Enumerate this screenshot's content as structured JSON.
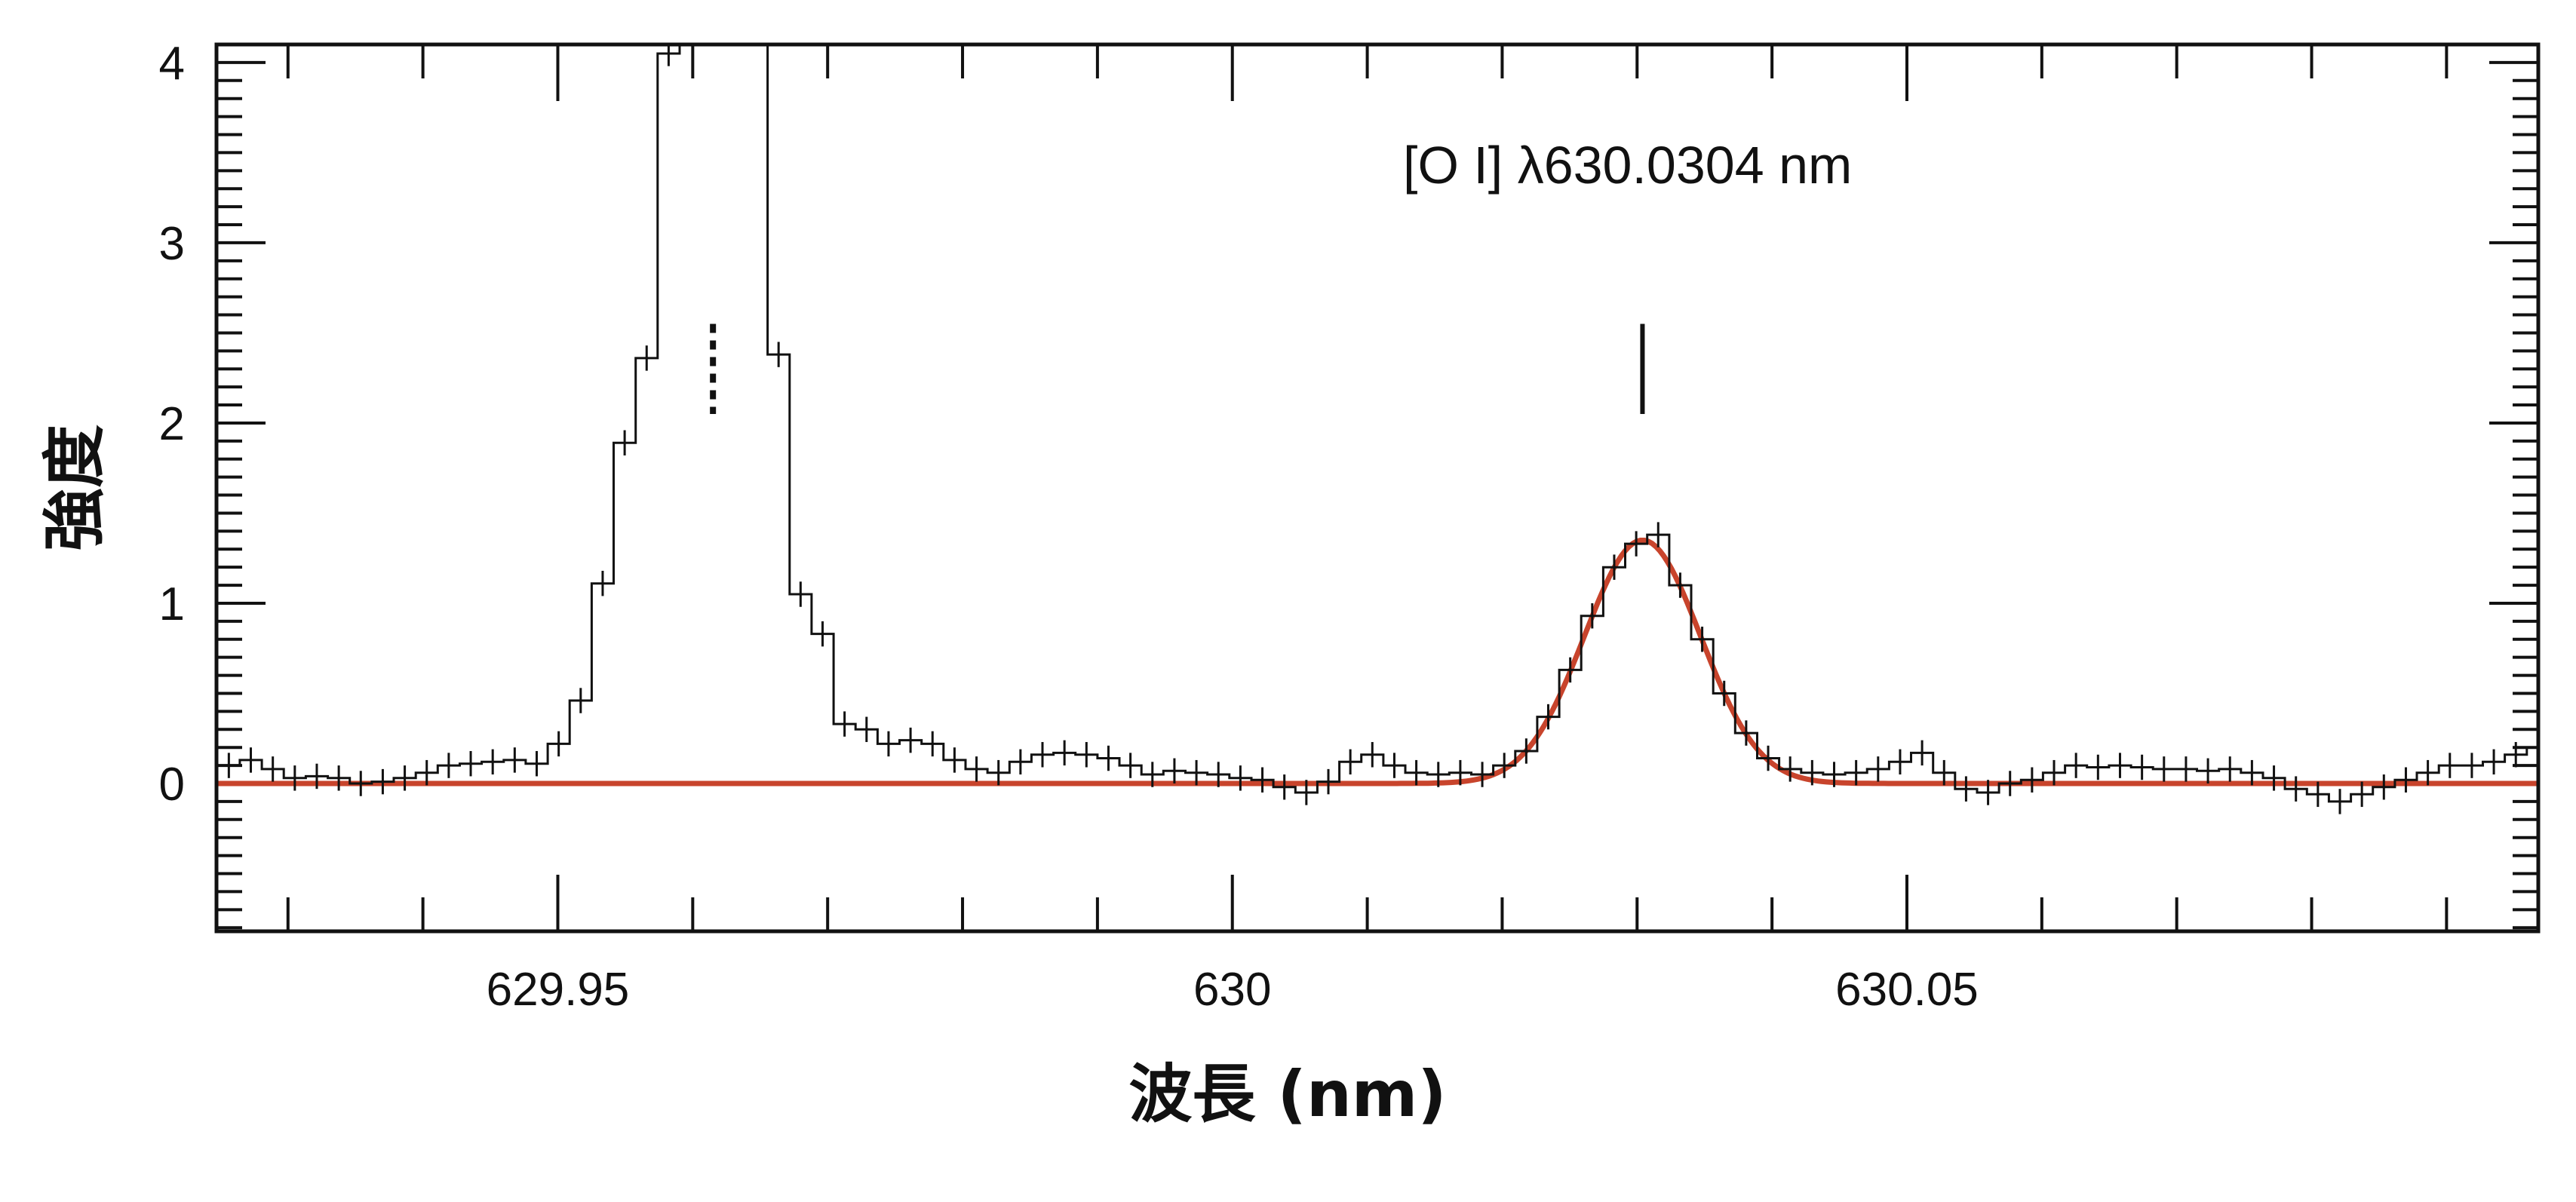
{
  "chart_data": {
    "type": "line",
    "subtype": "histogram-with-error-bars-and-gaussian-fit",
    "title": "",
    "xlabel": "波長 (nm)",
    "ylabel": "強度",
    "xlim": [
      629.9247,
      630.0968
    ],
    "ylim": [
      -0.82,
      4.1
    ],
    "grid": false,
    "x_ticks": [
      629.95,
      630,
      630.05
    ],
    "x_tick_labels": [
      "629.95",
      "630",
      "630.05"
    ],
    "x_minor_step": 0.01,
    "y_ticks": [
      0,
      1,
      2,
      3,
      4
    ],
    "y_tick_labels": [
      "0",
      "1",
      "2",
      "3",
      "4"
    ],
    "y_minor_step": 0.1,
    "annotation": "[O I] λ630.0304 nm",
    "histogram": {
      "name": "observed spectrum",
      "color": "#111111",
      "bin_start": 629.9248,
      "bin_width": 0.00163,
      "error": 0.07,
      "values": [
        0.1,
        0.13,
        0.08,
        0.03,
        0.04,
        0.03,
        0.0,
        0.01,
        0.03,
        0.06,
        0.1,
        0.11,
        0.12,
        0.13,
        0.11,
        0.22,
        0.46,
        1.11,
        1.89,
        2.36,
        4.05,
        9,
        14,
        12,
        6,
        2.38,
        1.05,
        0.83,
        0.33,
        0.3,
        0.22,
        0.24,
        0.22,
        0.13,
        0.08,
        0.06,
        0.12,
        0.16,
        0.17,
        0.16,
        0.14,
        0.1,
        0.05,
        0.07,
        0.06,
        0.05,
        0.03,
        0.02,
        -0.02,
        -0.05,
        0.01,
        0.12,
        0.16,
        0.1,
        0.06,
        0.05,
        0.06,
        0.05,
        0.1,
        0.18,
        0.37,
        0.63,
        0.93,
        1.2,
        1.33,
        1.38,
        1.1,
        0.8,
        0.5,
        0.28,
        0.14,
        0.08,
        0.06,
        0.05,
        0.06,
        0.08,
        0.12,
        0.17,
        0.06,
        -0.03,
        -0.05,
        0.0,
        0.02,
        0.06,
        0.1,
        0.09,
        0.1,
        0.09,
        0.08,
        0.08,
        0.07,
        0.08,
        0.06,
        0.03,
        -0.03,
        -0.06,
        -0.1,
        -0.06,
        -0.02,
        0.02,
        0.06,
        0.1,
        0.1,
        0.12,
        0.16,
        0.2
      ]
    },
    "fit": {
      "name": "gaussian fit",
      "color": "#c8442c",
      "amplitude": 1.35,
      "center": 630.0304,
      "sigma": 0.0043,
      "baseline": 0
    },
    "markers": [
      {
        "name": "O I line marker",
        "x": 630.0304,
        "y_range": [
          2.05,
          2.55
        ],
        "style": "solid"
      },
      {
        "name": "bright line marker",
        "x": 629.9615,
        "y_range": [
          2.05,
          2.55
        ],
        "style": "dotted"
      }
    ]
  }
}
